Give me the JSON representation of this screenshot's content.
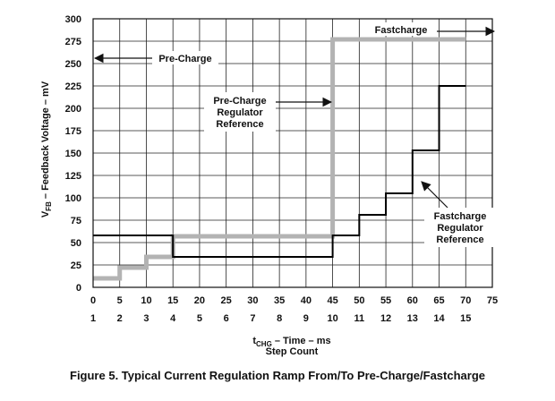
{
  "chart_data": {
    "type": "line",
    "ylabel_main": "V",
    "ylabel_sub": "FB",
    "ylabel_rest": " – Feedback Voltage – mV",
    "xlabel_main": "t",
    "xlabel_sub": "CHG",
    "xlabel_rest": " – Time – ms",
    "xlabel2": "Step Count",
    "xlim": [
      0,
      75
    ],
    "ylim": [
      0,
      300
    ],
    "x_ticks": [
      0,
      5,
      10,
      15,
      20,
      25,
      30,
      35,
      40,
      45,
      50,
      55,
      60,
      65,
      70,
      75
    ],
    "x_tick_labels": [
      "0",
      "5",
      "10",
      "15",
      "20",
      "25",
      "30",
      "35",
      "40",
      "45",
      "50",
      "55",
      "60",
      "65",
      "70",
      "75"
    ],
    "y_ticks": [
      0,
      25,
      50,
      75,
      100,
      125,
      150,
      175,
      200,
      225,
      250,
      275,
      300
    ],
    "y_tick_labels": [
      "0",
      "25",
      "50",
      "75",
      "100",
      "125",
      "150",
      "175",
      "200",
      "225",
      "250",
      "275",
      "300"
    ],
    "step_labels": [
      "1",
      "2",
      "3",
      "4",
      "5",
      "6",
      "7",
      "8",
      "9",
      "10",
      "11",
      "12",
      "13",
      "14",
      "15"
    ],
    "grid": true,
    "series": [
      {
        "name": "Pre-Charge Regulator Reference",
        "color": "#b3b3b3",
        "x": [
          0,
          5,
          5,
          10,
          10,
          15,
          15,
          45,
          45,
          70
        ],
        "y": [
          10,
          10,
          22,
          22,
          34,
          34,
          57,
          57,
          277,
          277
        ]
      },
      {
        "name": "Fastcharge Regulator Reference",
        "color": "#000000",
        "x": [
          0,
          15,
          15,
          45,
          45,
          50,
          50,
          55,
          55,
          60,
          60,
          65,
          65,
          70
        ],
        "y": [
          58,
          58,
          34,
          34,
          58,
          58,
          81,
          81,
          105,
          105,
          153,
          153,
          225,
          225
        ]
      }
    ],
    "annotations": {
      "fastcharge": "Fastcharge",
      "precharge": "Pre-Charge",
      "precharge_ref": [
        "Pre-Charge",
        "Regulator",
        "Reference"
      ],
      "fastcharge_ref": [
        "Fastcharge",
        "Regulator",
        "Reference"
      ]
    }
  },
  "caption": "Figure 5. Typical Current Regulation Ramp From/To Pre-Charge/Fastcharge"
}
